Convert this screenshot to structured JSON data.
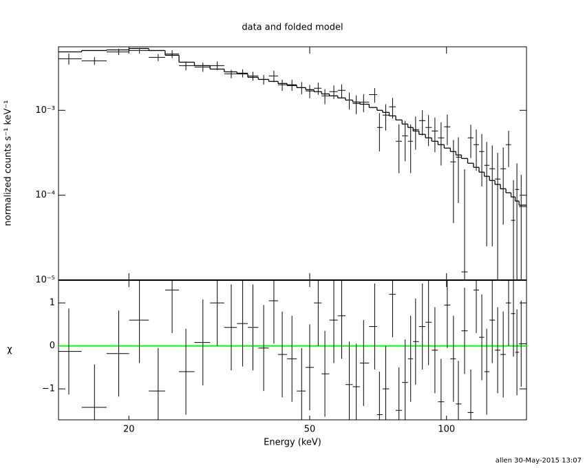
{
  "title": "data and folded model",
  "footer": "allen 30-May-2015 13:07",
  "chart_data": [
    {
      "type": "errorbar-step",
      "ylabel": "normalized counts s⁻¹ keV⁻¹",
      "log_x": true,
      "log_y": true,
      "xlim": [
        14,
        150
      ],
      "ylim": [
        1e-05,
        0.0056
      ],
      "yticks": [
        {
          "value": 1e-05,
          "label": "10⁻⁵"
        },
        {
          "value": 0.0001,
          "label": "10⁻⁴"
        },
        {
          "value": 0.001,
          "label": "10⁻³"
        }
      ],
      "x": [
        14.75,
        16.8,
        19.0,
        21.1,
        23.2,
        24.9,
        26.7,
        29.1,
        31.3,
        33.6,
        35.6,
        37.5,
        39.6,
        41.7,
        43.5,
        45.7,
        48.0,
        50.0,
        52.2,
        54.0,
        56.5,
        58.8,
        61.1,
        63.3,
        65.7,
        69.5,
        71.2,
        73.5,
        76.1,
        78.6,
        81.1,
        83.4,
        85.5,
        88.5,
        91.3,
        94.3,
        97.3,
        100.4,
        103.6,
        106.2,
        109.6,
        113.1,
        116.3,
        119.6,
        122.6,
        126.1,
        129.6,
        133.3,
        137.0,
        140.4,
        142.9,
        146.0
      ],
      "values": [
        0.00405,
        0.00383,
        0.00488,
        0.00506,
        0.0042,
        0.00461,
        0.00336,
        0.00324,
        0.00336,
        0.00269,
        0.00274,
        0.00254,
        0.00231,
        0.00254,
        0.002,
        0.002,
        0.00185,
        0.00169,
        0.00182,
        0.00148,
        0.00166,
        0.00172,
        0.00132,
        0.0012,
        0.00125,
        0.00153,
        0.000628,
        0.000878,
        0.0011,
        0.000432,
        0.000501,
        0.000432,
        0.000593,
        0.000756,
        0.000628,
        0.000571,
        0.000474,
        0.00064,
        0.000247,
        0.000281,
        1.25e-05,
        0.000474,
        0.000394,
        0.000327,
        0.000225,
        0.000205,
        0.000155,
        0.000205,
        0.000394,
        5.06e-05,
        0.000117,
        7.35e-05
      ],
      "errors": [
        0.0006,
        0.0004,
        0.0004,
        0.0004,
        0.0004,
        0.0005,
        0.0004,
        0.0004,
        0.0004,
        0.0003,
        0.0003,
        0.0003,
        0.0003,
        0.0004,
        0.0003,
        0.0003,
        0.0003,
        0.0003,
        0.0003,
        0.0003,
        0.0003,
        0.0003,
        0.0003,
        0.0003,
        0.0003,
        0.0003,
        0.0003,
        0.0003,
        0.0003,
        0.00025,
        0.00025,
        0.00025,
        0.00025,
        0.00025,
        0.00025,
        0.00025,
        0.00025,
        0.00025,
        0.0002,
        0.0002,
        0.00019,
        0.0002,
        0.0002,
        0.0002,
        0.0002,
        0.00018,
        0.00016,
        0.00016,
        0.00018,
        0.0001,
        0.00012,
        0.0001
      ],
      "model": [
        0.00488,
        0.00506,
        0.00515,
        0.00535,
        0.00506,
        0.00445,
        0.00369,
        0.00336,
        0.00306,
        0.00284,
        0.00269,
        0.00245,
        0.00231,
        0.00219,
        0.00207,
        0.00196,
        0.00185,
        0.00175,
        0.00166,
        0.00156,
        0.00148,
        0.0014,
        0.00132,
        0.00125,
        0.00118,
        0.00108,
        0.001,
        0.000946,
        0.000861,
        0.000771,
        0.000689,
        0.000628,
        0.000571,
        0.000521,
        0.000474,
        0.000432,
        0.000394,
        0.000359,
        0.000327,
        0.000298,
        0.000271,
        0.000238,
        0.000213,
        0.000187,
        0.000167,
        0.000149,
        0.000134,
        0.000119,
        0.000107,
        9.54e-05,
        8.53e-05,
        7.64e-05
      ]
    },
    {
      "type": "residual",
      "ylabel": "χ",
      "xlabel": "Energy (keV)",
      "log_x": true,
      "xlim": [
        14,
        150
      ],
      "xticks": [
        20,
        50,
        100
      ],
      "ylim": [
        -1.72,
        1.53
      ],
      "yticks": [
        {
          "value": -1,
          "label": "−1"
        },
        0,
        1
      ],
      "zero_line_color": "#00ff00",
      "error": 1,
      "x": [
        14.75,
        16.8,
        19.0,
        21.1,
        23.2,
        24.9,
        26.7,
        29.1,
        31.3,
        33.6,
        35.6,
        37.5,
        39.6,
        41.7,
        43.5,
        45.7,
        48.0,
        50.0,
        52.2,
        54.0,
        56.5,
        58.8,
        61.1,
        63.3,
        65.7,
        69.5,
        71.2,
        73.5,
        76.1,
        78.6,
        81.1,
        83.4,
        85.5,
        88.5,
        91.3,
        94.3,
        97.3,
        100.4,
        103.6,
        106.2,
        109.6,
        113.1,
        116.3,
        119.6,
        122.6,
        126.1,
        129.6,
        133.3,
        137.0,
        140.4,
        142.9,
        146.0
      ],
      "values": [
        -0.13,
        -1.43,
        -0.18,
        0.6,
        -1.05,
        1.3,
        -0.6,
        0.08,
        1.0,
        0.43,
        0.52,
        0.43,
        -0.05,
        1.05,
        -0.2,
        -0.3,
        -1.05,
        -0.5,
        1.0,
        -0.65,
        0.6,
        0.7,
        -0.9,
        -0.95,
        -0.4,
        0.45,
        -1.6,
        -1.0,
        1.2,
        -1.5,
        -0.85,
        -0.3,
        0.1,
        0.45,
        0.55,
        -0.1,
        -1.3,
        0.95,
        -0.3,
        -1.35,
        0.35,
        -1.55,
        1.3,
        0.2,
        -0.6,
        0.6,
        -0.1,
        -0.2,
        1.0,
        0.75,
        -0.15,
        0.05
      ]
    }
  ]
}
